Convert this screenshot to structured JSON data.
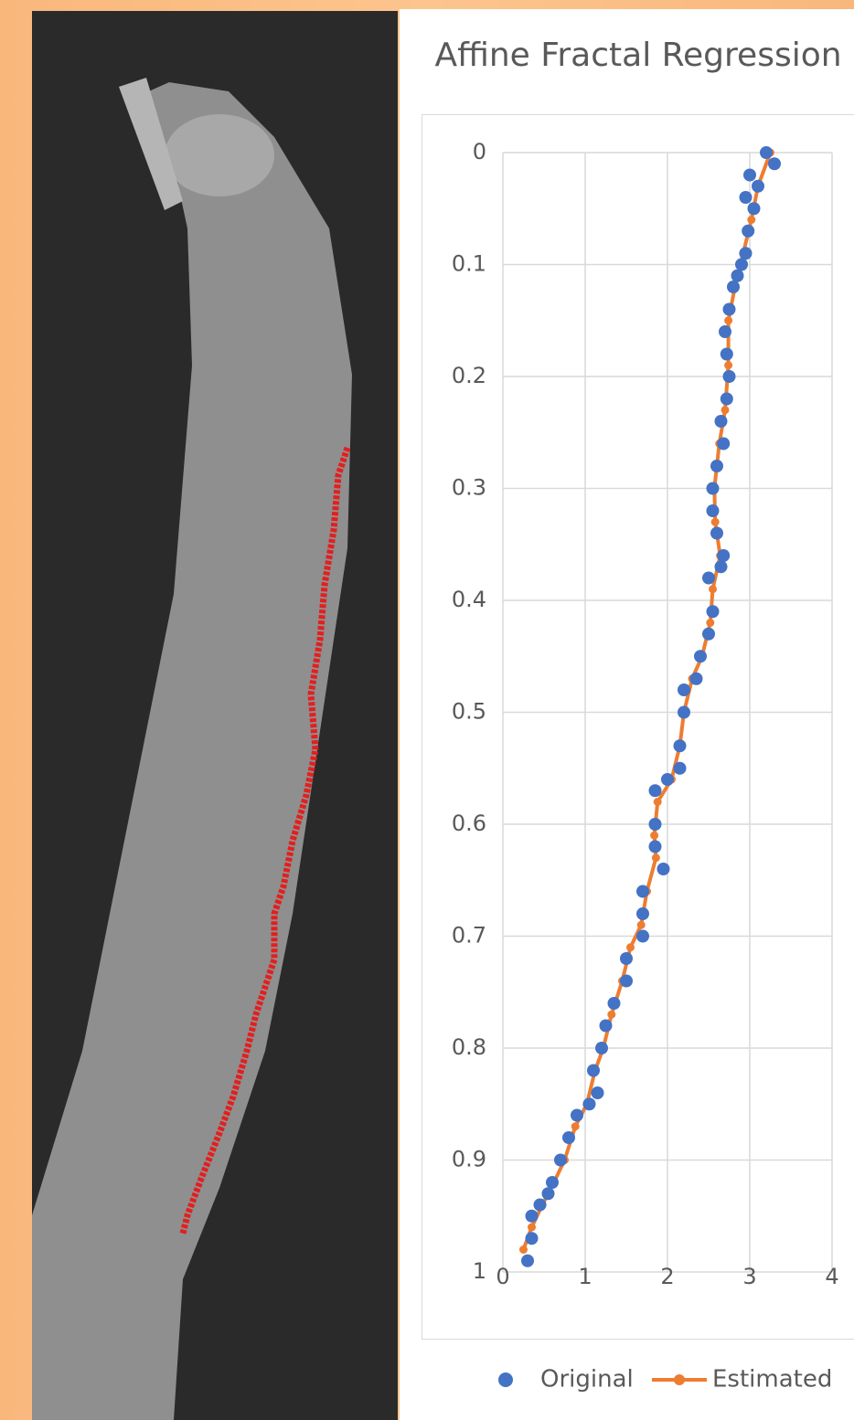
{
  "chart_data": {
    "type": "scatter",
    "title": "Affine Fractal Regression",
    "series": [
      {
        "name": "Estimated",
        "color": "#ed7d31",
        "style": "line-markers",
        "x": [
          3.25,
          3.1,
          3.02,
          2.92,
          2.82,
          2.74,
          2.74,
          2.7,
          2.63,
          2.57,
          2.58,
          2.64,
          2.55,
          2.52,
          2.42,
          2.3,
          2.2,
          2.15,
          2.05,
          1.88,
          1.84,
          1.86,
          1.75,
          1.68,
          1.55,
          1.45,
          1.32,
          1.22,
          1.12,
          1.02,
          0.88,
          0.75,
          0.62,
          0.48,
          0.35,
          0.25
        ],
        "values": [
          0.0,
          0.03,
          0.06,
          0.09,
          0.12,
          0.15,
          0.19,
          0.23,
          0.26,
          0.3,
          0.33,
          0.36,
          0.39,
          0.42,
          0.45,
          0.47,
          0.5,
          0.53,
          0.56,
          0.58,
          0.61,
          0.63,
          0.66,
          0.69,
          0.71,
          0.74,
          0.77,
          0.8,
          0.82,
          0.85,
          0.87,
          0.9,
          0.92,
          0.94,
          0.96,
          0.98
        ]
      },
      {
        "name": "Original",
        "color": "#4472c4",
        "style": "markers",
        "x": [
          3.2,
          3.3,
          3.0,
          3.1,
          2.95,
          3.05,
          2.98,
          2.95,
          2.9,
          2.85,
          2.8,
          2.75,
          2.7,
          2.72,
          2.75,
          2.72,
          2.65,
          2.68,
          2.6,
          2.55,
          2.55,
          2.6,
          2.68,
          2.65,
          2.5,
          2.55,
          2.5,
          2.4,
          2.35,
          2.2,
          2.2,
          2.15,
          2.15,
          2.0,
          1.85,
          1.85,
          1.85,
          1.95,
          1.7,
          1.7,
          1.7,
          1.5,
          1.5,
          1.35,
          1.25,
          1.2,
          1.1,
          1.15,
          1.05,
          0.9,
          0.8,
          0.7,
          0.6,
          0.55,
          0.45,
          0.35,
          0.35,
          0.3
        ],
        "values": [
          0.0,
          0.01,
          0.02,
          0.03,
          0.04,
          0.05,
          0.07,
          0.09,
          0.1,
          0.11,
          0.12,
          0.14,
          0.16,
          0.18,
          0.2,
          0.22,
          0.24,
          0.26,
          0.28,
          0.3,
          0.32,
          0.34,
          0.36,
          0.37,
          0.38,
          0.41,
          0.43,
          0.45,
          0.47,
          0.48,
          0.5,
          0.53,
          0.55,
          0.56,
          0.57,
          0.6,
          0.62,
          0.64,
          0.66,
          0.68,
          0.7,
          0.72,
          0.74,
          0.76,
          0.78,
          0.8,
          0.82,
          0.84,
          0.85,
          0.86,
          0.88,
          0.9,
          0.92,
          0.93,
          0.94,
          0.95,
          0.97,
          0.99
        ]
      }
    ],
    "legend_order": [
      "Original",
      "Estimated"
    ],
    "xlim": [
      0,
      4
    ],
    "xticks": [
      0,
      1,
      2,
      3,
      4
    ],
    "ylim": [
      0,
      1
    ],
    "yticks": [
      0,
      0.1,
      0.2,
      0.3,
      0.4,
      0.5,
      0.6,
      0.7,
      0.8,
      0.9,
      1
    ],
    "y_reversed": true,
    "grid": true,
    "legend": "bottom"
  }
}
